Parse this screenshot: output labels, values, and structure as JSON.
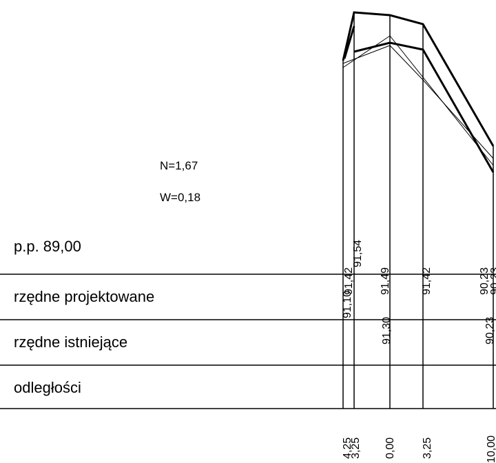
{
  "annotations": [
    "N=1,67",
    "W=0,18"
  ],
  "datum": "p.p.  89,00",
  "rows": [
    {
      "label": "rzędne projektowane",
      "values": [
        "91,42",
        "91,54",
        "91,49",
        "91,42",
        "90,23",
        "90,23"
      ]
    },
    {
      "label": "rzędne istniejące",
      "values": [
        "91,10",
        "91,30",
        "90,23"
      ]
    },
    {
      "label": "odległości"
    }
  ],
  "distances": [
    "4,25",
    "3,25",
    "0,00",
    "3,25",
    "10,00"
  ]
}
